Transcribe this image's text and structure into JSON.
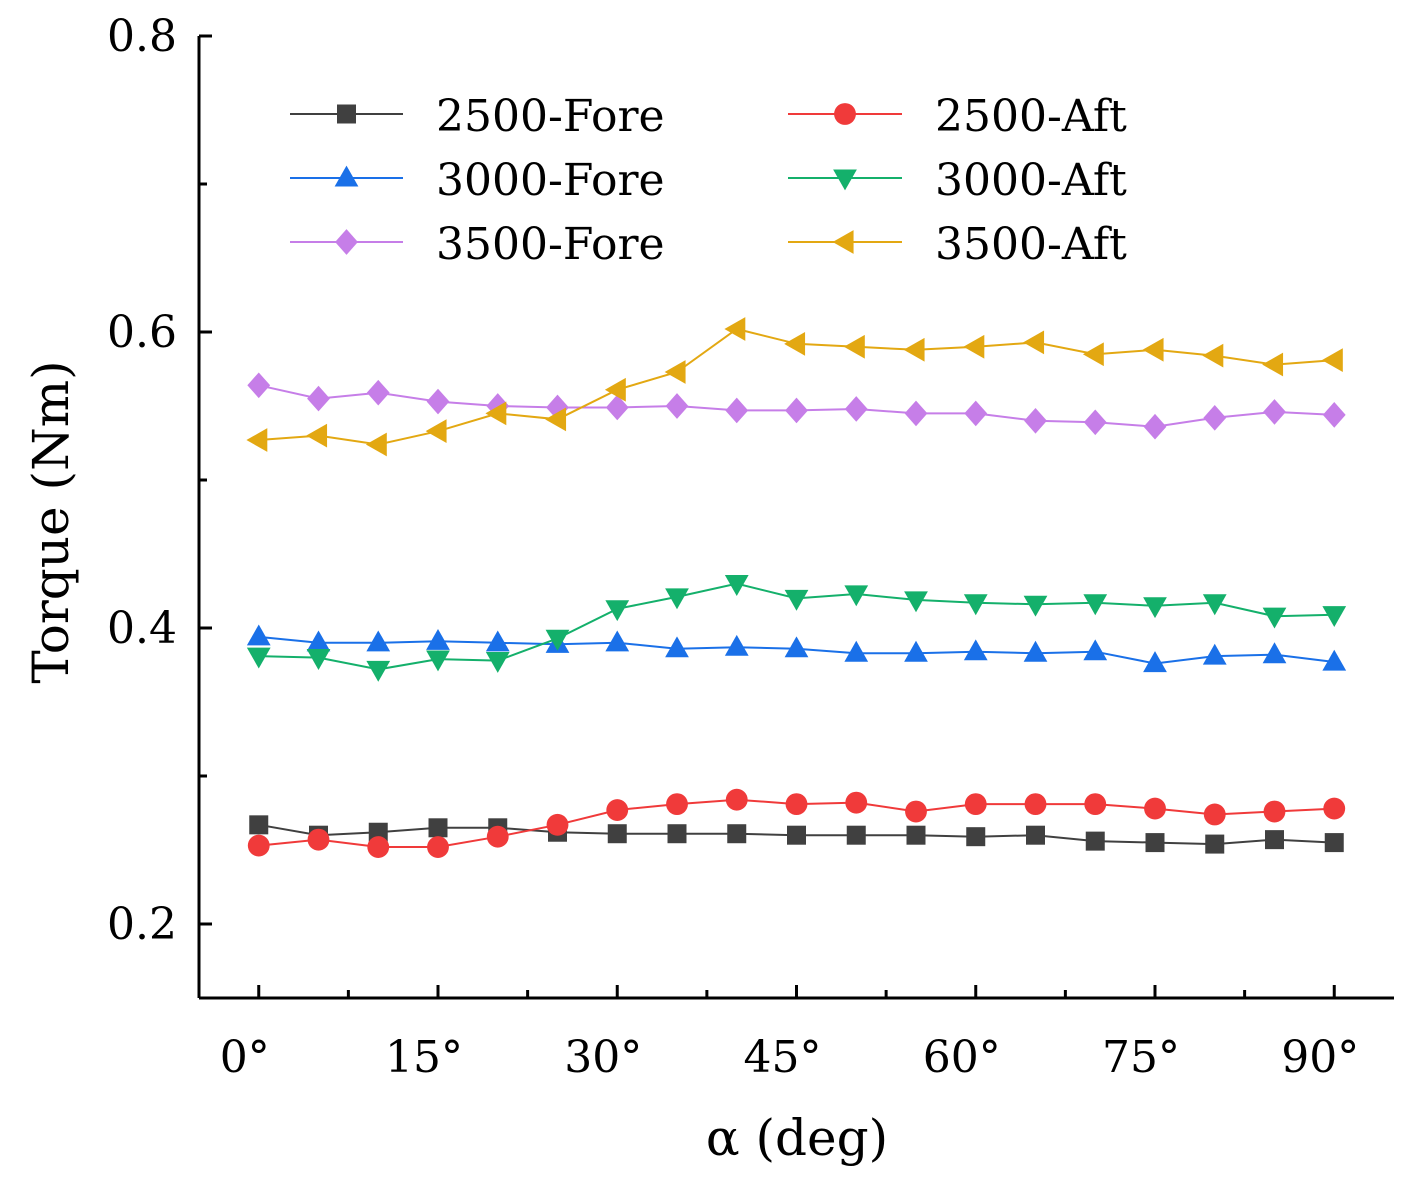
{
  "chart_data": {
    "type": "line",
    "title": "",
    "xlabel": "α (deg)",
    "ylabel": "Torque (Nm)",
    "xlim": [
      -5,
      95
    ],
    "ylim": [
      0.15,
      0.8
    ],
    "x_ticks": [
      0,
      15,
      30,
      45,
      60,
      75,
      90
    ],
    "x_tick_labels": [
      "0°",
      "15°",
      "30°",
      "45°",
      "60°",
      "75°",
      "90°"
    ],
    "y_ticks": [
      0.2,
      0.4,
      0.6,
      0.8
    ],
    "y_tick_labels": [
      "0.2",
      "0.4",
      "0.6",
      "0.8"
    ],
    "x": [
      0,
      5,
      10,
      15,
      20,
      25,
      30,
      35,
      40,
      45,
      50,
      55,
      60,
      65,
      70,
      75,
      80,
      85,
      90
    ],
    "legend_position": "top",
    "series": [
      {
        "name": "2500-Fore",
        "color": "#404040",
        "marker": "square",
        "values": [
          0.267,
          0.26,
          0.262,
          0.265,
          0.265,
          0.262,
          0.261,
          0.261,
          0.261,
          0.26,
          0.26,
          0.26,
          0.259,
          0.26,
          0.256,
          0.255,
          0.254,
          0.257,
          0.255
        ]
      },
      {
        "name": "2500-Aft",
        "color": "#f03a3a",
        "marker": "circle",
        "values": [
          0.253,
          0.257,
          0.252,
          0.252,
          0.259,
          0.267,
          0.277,
          0.281,
          0.284,
          0.281,
          0.282,
          0.276,
          0.281,
          0.281,
          0.281,
          0.278,
          0.274,
          0.276,
          0.278
        ]
      },
      {
        "name": "3000-Fore",
        "color": "#1a70e8",
        "marker": "triangle-up",
        "values": [
          0.394,
          0.39,
          0.39,
          0.391,
          0.39,
          0.389,
          0.39,
          0.386,
          0.387,
          0.386,
          0.383,
          0.383,
          0.384,
          0.383,
          0.384,
          0.376,
          0.381,
          0.382,
          0.377
        ]
      },
      {
        "name": "3000-Aft",
        "color": "#14b06b",
        "marker": "triangle-down",
        "values": [
          0.381,
          0.38,
          0.372,
          0.379,
          0.378,
          0.393,
          0.413,
          0.421,
          0.43,
          0.42,
          0.423,
          0.419,
          0.417,
          0.416,
          0.417,
          0.415,
          0.417,
          0.408,
          0.409
        ]
      },
      {
        "name": "3500-Fore",
        "color": "#c67ee8",
        "marker": "diamond",
        "values": [
          0.564,
          0.555,
          0.559,
          0.553,
          0.55,
          0.549,
          0.549,
          0.55,
          0.547,
          0.547,
          0.548,
          0.545,
          0.545,
          0.54,
          0.539,
          0.536,
          0.542,
          0.546,
          0.544
        ]
      },
      {
        "name": "3500-Aft",
        "color": "#e3a812",
        "marker": "triangle-left",
        "values": [
          0.527,
          0.53,
          0.524,
          0.533,
          0.545,
          0.541,
          0.561,
          0.573,
          0.602,
          0.592,
          0.59,
          0.588,
          0.59,
          0.593,
          0.585,
          0.588,
          0.584,
          0.578,
          0.581
        ]
      }
    ]
  }
}
